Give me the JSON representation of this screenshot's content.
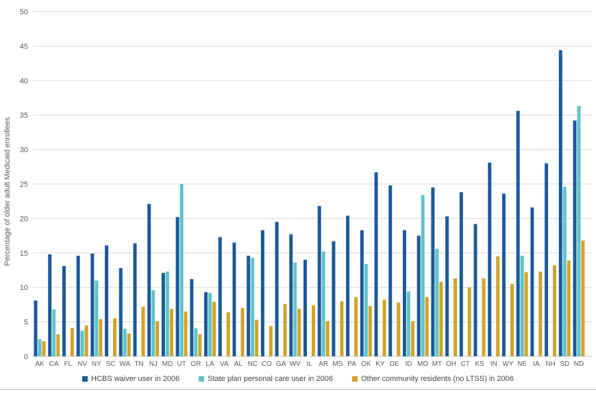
{
  "chart_data": {
    "type": "bar",
    "title": "",
    "ylabel": "Percentage of older adult Medicaid enrollees",
    "xlabel": "",
    "ylim": [
      0,
      50
    ],
    "yticks": [
      0,
      5,
      10,
      15,
      20,
      25,
      30,
      35,
      40,
      45,
      50
    ],
    "grid": true,
    "legend_position": "bottom",
    "categories": [
      "AK",
      "CA",
      "FL",
      "NV",
      "NY",
      "SC",
      "WA",
      "TN",
      "NJ",
      "MD",
      "UT",
      "OR",
      "LA",
      "VA",
      "AL",
      "NC",
      "CO",
      "GA",
      "WV",
      "IL",
      "AR",
      "MS",
      "PA",
      "OK",
      "KY",
      "DE",
      "ID",
      "MO",
      "MT",
      "OH",
      "CT",
      "KS",
      "IN",
      "WY",
      "NE",
      "IA",
      "NH",
      "SD",
      "ND"
    ],
    "series": [
      {
        "name": "HCBS waiver user in 2006",
        "color": "#1a5a9c",
        "values": [
          8.1,
          14.8,
          13.1,
          14.6,
          14.9,
          16.1,
          12.8,
          16.4,
          22.1,
          12.1,
          20.2,
          11.2,
          9.3,
          17.3,
          16.5,
          14.6,
          18.3,
          19.5,
          17.7,
          14.0,
          21.8,
          16.7,
          20.4,
          18.3,
          26.7,
          24.8,
          18.3,
          17.5,
          24.5,
          20.3,
          23.8,
          19.2,
          28.1,
          23.6,
          35.6,
          21.6,
          28.0,
          44.4,
          34.2
        ]
      },
      {
        "name": "State plan personal care user in 2006",
        "color": "#5fc4c6",
        "values": [
          2.5,
          6.8,
          null,
          3.7,
          11.0,
          null,
          4.0,
          null,
          9.6,
          12.3,
          25.0,
          4.1,
          9.2,
          null,
          null,
          14.3,
          null,
          null,
          13.6,
          null,
          15.2,
          null,
          null,
          13.4,
          null,
          null,
          9.4,
          23.4,
          15.6,
          null,
          null,
          null,
          null,
          null,
          14.6,
          null,
          null,
          24.6,
          36.3
        ]
      },
      {
        "name": "Other community residents (no LTSS) in 2006",
        "color": "#d0a42b",
        "values": [
          2.2,
          3.2,
          4.1,
          4.5,
          5.4,
          5.5,
          3.3,
          7.2,
          5.1,
          6.9,
          6.5,
          3.2,
          7.9,
          6.4,
          7.0,
          5.3,
          4.4,
          7.6,
          6.9,
          7.4,
          5.1,
          8.0,
          8.6,
          7.3,
          8.2,
          7.8,
          5.1,
          8.6,
          10.8,
          11.3,
          10.0,
          11.3,
          14.5,
          10.5,
          12.2,
          12.3,
          13.2,
          13.9,
          16.8
        ]
      }
    ],
    "style": {
      "gridline_color": "#d9d9d9",
      "axis_line_color": "#c9c9c9",
      "tick_label_color": "#595959",
      "axis_title_color": "#595959",
      "legend_text_color": "#444444"
    }
  }
}
